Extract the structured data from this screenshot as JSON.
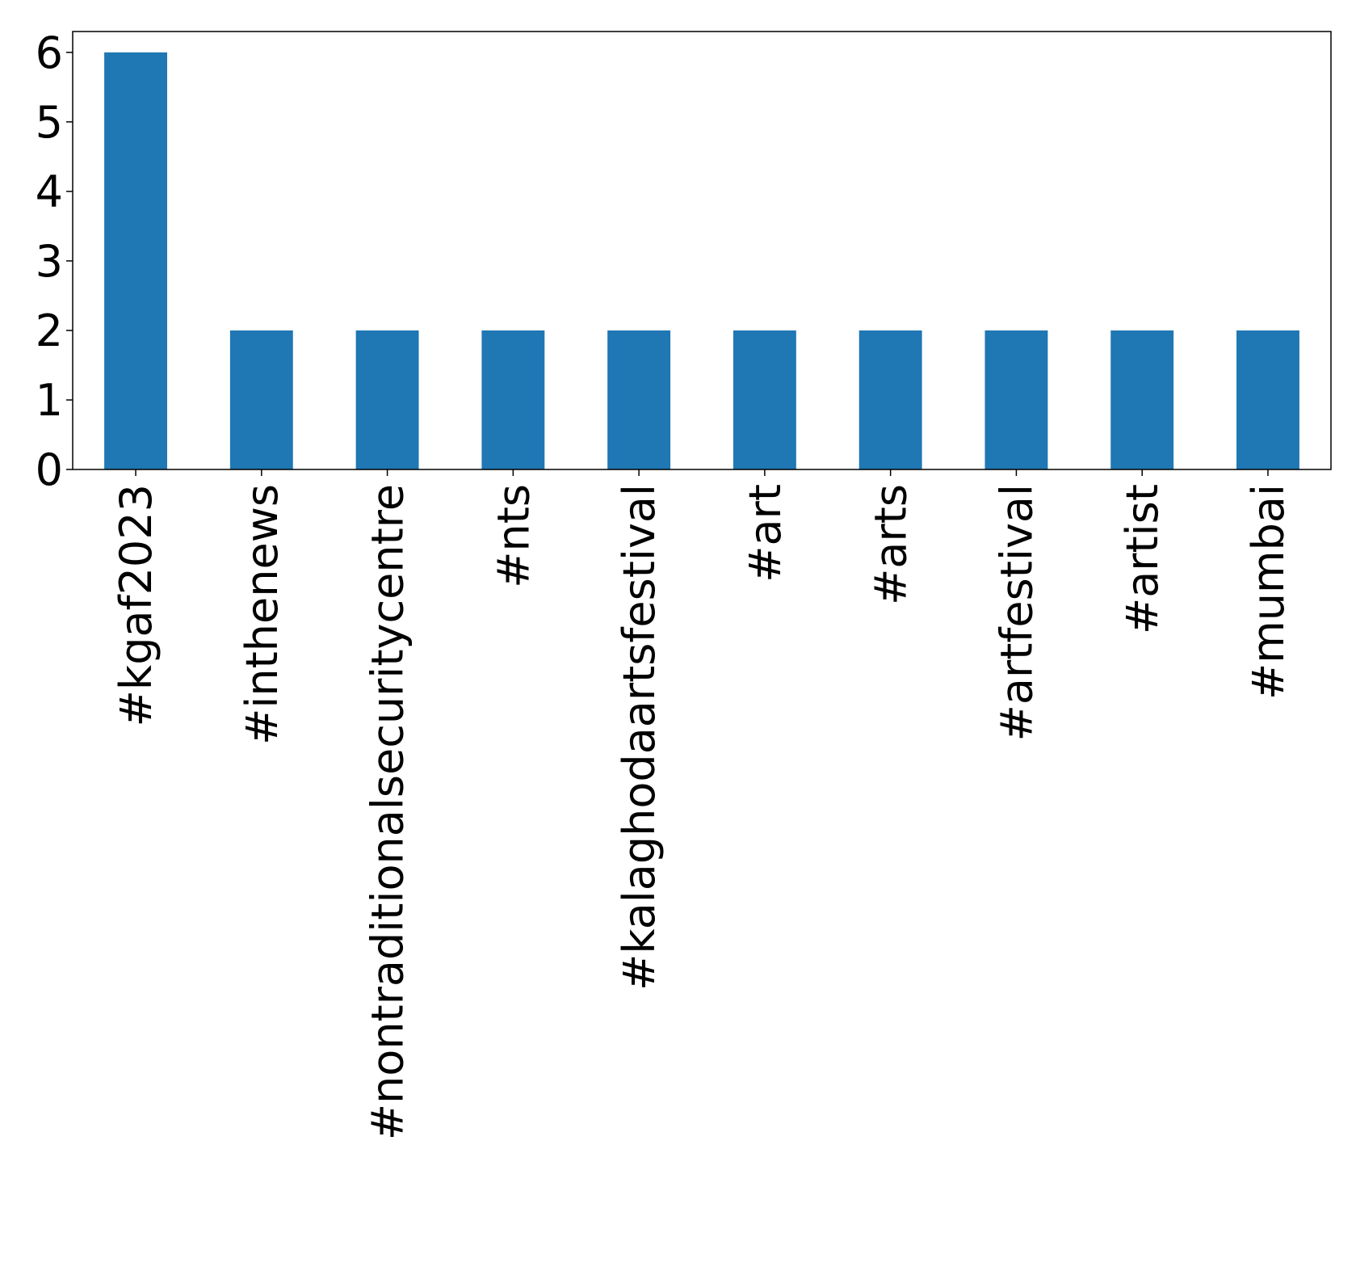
{
  "chart_data": {
    "type": "bar",
    "categories": [
      "#kgaf2023",
      "#inthenews",
      "#nontraditionalsecuritycentre",
      "#nts",
      "#kalaghodaartsfestival",
      "#art",
      "#arts",
      "#artfestival",
      "#artist",
      "#mumbai"
    ],
    "values": [
      6,
      2,
      2,
      2,
      2,
      2,
      2,
      2,
      2,
      2
    ],
    "title": "",
    "xlabel": "",
    "ylabel": "",
    "ylim": [
      0,
      6.3
    ],
    "yticks": [
      0,
      1,
      2,
      3,
      4,
      5,
      6
    ],
    "bar_color": "#1f77b4",
    "grid": false,
    "legend": "none"
  }
}
